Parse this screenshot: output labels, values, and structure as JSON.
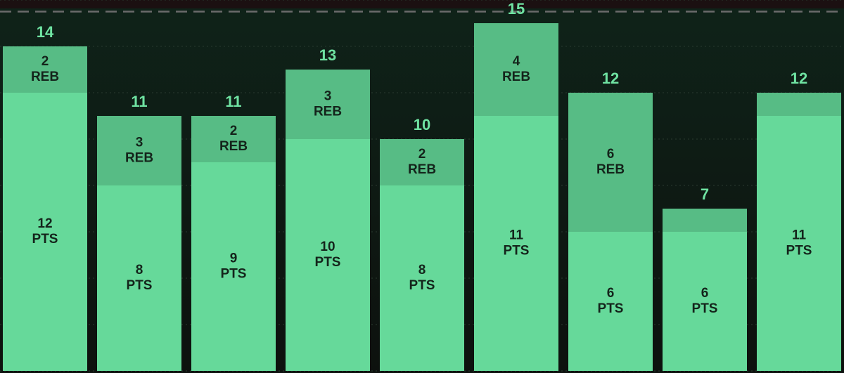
{
  "chart_data": {
    "type": "stacked_bar",
    "series": [
      {
        "name": "PTS",
        "color": "#66d99a",
        "values": [
          12,
          8,
          9,
          10,
          8,
          11,
          6,
          6,
          11
        ]
      },
      {
        "name": "REB",
        "color": "#57bc85",
        "values": [
          2,
          3,
          2,
          3,
          2,
          4,
          6,
          1,
          1
        ]
      }
    ],
    "totals": [
      14,
      11,
      11,
      13,
      10,
      15,
      12,
      7,
      12
    ],
    "ylim": [
      0,
      16
    ],
    "yticks": [
      0,
      2,
      4,
      6,
      8,
      10,
      12,
      14,
      16
    ],
    "grid": true,
    "reference_line": 15.5
  }
}
